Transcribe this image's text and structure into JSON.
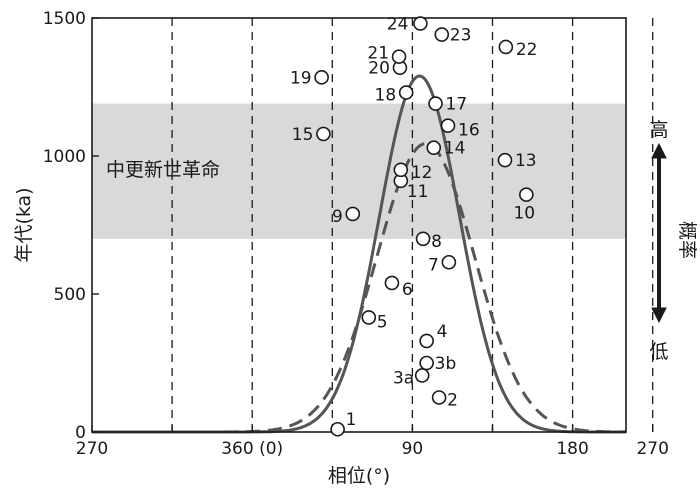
{
  "chart_data": {
    "type": "scatter",
    "title": "",
    "xlabel": "相位(°)",
    "ylabel": "年代(ka)",
    "xlim": [
      0,
      600
    ],
    "ylim": [
      0,
      1500
    ],
    "x_tick_positions": [
      0,
      90,
      180,
      270,
      360,
      450,
      540,
      630
    ],
    "x_tick_labels": [
      "270",
      "",
      "360 (0)",
      "",
      "90",
      "",
      "180",
      "270"
    ],
    "y_ticks": [
      0,
      500,
      1000,
      1500
    ],
    "y_tick_labels": [
      "0",
      "500",
      "1000",
      "1500"
    ],
    "vertical_dashed_lines": [
      90,
      180,
      270,
      360,
      450,
      540,
      630
    ],
    "shaded_band": {
      "label": "中更新世革命",
      "ymin": 700,
      "ymax": 1190,
      "color": "#d9d9d9"
    },
    "right_annotation": {
      "top": "高",
      "middle": "概率",
      "bottom": "低"
    },
    "points": [
      {
        "label": "1",
        "x": 276,
        "y": 10
      },
      {
        "label": "2",
        "x": 390,
        "y": 125
      },
      {
        "label": "3a",
        "x": 371,
        "y": 205
      },
      {
        "label": "3b",
        "x": 376,
        "y": 250
      },
      {
        "label": "4",
        "x": 376,
        "y": 330
      },
      {
        "label": "5",
        "x": 311,
        "y": 415
      },
      {
        "label": "6",
        "x": 337,
        "y": 540
      },
      {
        "label": "7",
        "x": 401,
        "y": 615
      },
      {
        "label": "8",
        "x": 372,
        "y": 700
      },
      {
        "label": "9",
        "x": 293,
        "y": 790
      },
      {
        "label": "10",
        "x": 488,
        "y": 860
      },
      {
        "label": "11",
        "x": 347,
        "y": 910
      },
      {
        "label": "12",
        "x": 347,
        "y": 950
      },
      {
        "label": "13",
        "x": 464,
        "y": 985
      },
      {
        "label": "14",
        "x": 384,
        "y": 1030
      },
      {
        "label": "15",
        "x": 260,
        "y": 1080
      },
      {
        "label": "16",
        "x": 400,
        "y": 1110
      },
      {
        "label": "17",
        "x": 386,
        "y": 1190
      },
      {
        "label": "18",
        "x": 353,
        "y": 1230
      },
      {
        "label": "19",
        "x": 258,
        "y": 1285
      },
      {
        "label": "20",
        "x": 346,
        "y": 1320
      },
      {
        "label": "21",
        "x": 345,
        "y": 1360
      },
      {
        "label": "22",
        "x": 465,
        "y": 1395
      },
      {
        "label": "23",
        "x": 393,
        "y": 1440
      },
      {
        "label": "24",
        "x": 369,
        "y": 1480
      }
    ],
    "series": [
      {
        "style": "solid",
        "mu": 368,
        "sigma": 45,
        "peak": 1290
      },
      {
        "style": "dashed",
        "mu": 375,
        "sigma": 55,
        "peak": 1045
      }
    ]
  }
}
